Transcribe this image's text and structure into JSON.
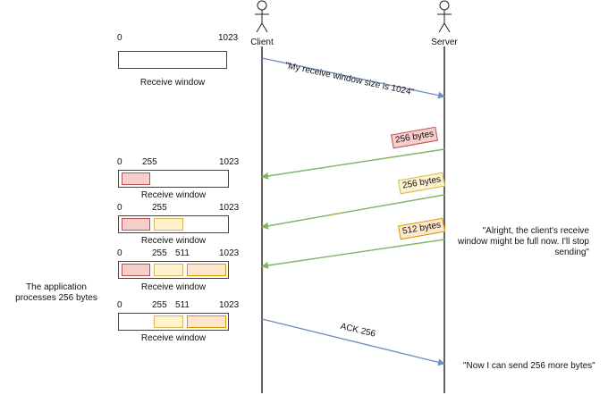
{
  "actors": {
    "client": "Client",
    "server": "Server"
  },
  "colors": {
    "blue_arrow": "#6c8ebf",
    "green_arrow": "#82b366",
    "red_fill": "#f8cecc",
    "red_stroke": "#b85450",
    "yellow_fill": "#fff2cc",
    "yellow_stroke": "#d6b656",
    "orange_fill": "#ffe6cc",
    "orange_stroke": "#d79b00"
  },
  "messages": {
    "window_size": "\"My receive window size is 1024\"",
    "packet1": "256 bytes",
    "packet2": "256 bytes",
    "packet3": "512 bytes",
    "ack": "ACK 256"
  },
  "notes": {
    "full": "\"Alright, the client's receive window might be full now. I'll stop sending\"",
    "more": "\"Now I can send 256 more bytes\"",
    "application": "The application processes 256 bytes"
  },
  "windows": [
    {
      "caption": "Receive window",
      "ticks": [
        "0",
        "1023"
      ]
    },
    {
      "caption": "Receive window",
      "ticks": [
        "0",
        "255",
        "1023"
      ]
    },
    {
      "caption": "Receive window",
      "ticks": [
        "0",
        "255",
        "1023"
      ]
    },
    {
      "caption": "Receive window",
      "ticks": [
        "0",
        "255",
        "511",
        "1023"
      ]
    },
    {
      "caption": "Receive window",
      "ticks": [
        "0",
        "255",
        "511",
        "1023"
      ]
    }
  ]
}
